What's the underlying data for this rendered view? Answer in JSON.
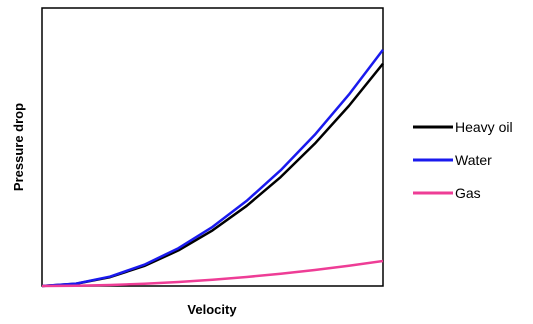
{
  "chart_data": {
    "type": "line",
    "title": "",
    "xlabel": "Velocity",
    "ylabel": "Pressure drop",
    "xlim": [
      0,
      1
    ],
    "ylim": [
      0,
      1
    ],
    "grid": false,
    "ticks": false,
    "legend_placement": "right",
    "x": [
      0,
      0.1,
      0.2,
      0.3,
      0.4,
      0.5,
      0.6,
      0.7,
      0.8,
      0.9,
      1.0
    ],
    "series": [
      {
        "name": "Heavy oil",
        "color": "#000000",
        "values": [
          0,
          0.008,
          0.032,
          0.072,
          0.128,
          0.2,
          0.288,
          0.392,
          0.512,
          0.648,
          0.8
        ]
      },
      {
        "name": "Water",
        "color": "#1a1aee",
        "values": [
          0,
          0.0085,
          0.034,
          0.0765,
          0.136,
          0.2125,
          0.306,
          0.4165,
          0.544,
          0.6885,
          0.85
        ]
      },
      {
        "name": "Gas",
        "color": "#ee3d96",
        "values": [
          0,
          0.0009,
          0.0036,
          0.0081,
          0.0144,
          0.0225,
          0.0324,
          0.0441,
          0.0576,
          0.0729,
          0.09
        ]
      }
    ]
  }
}
